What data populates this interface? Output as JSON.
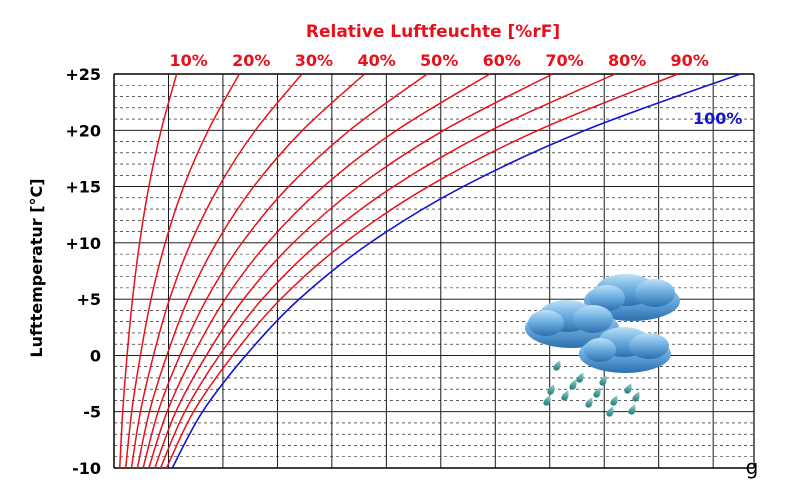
{
  "chart_data": {
    "type": "line",
    "title": "Relative Luftfeuchte [%rF]",
    "ylabel": "Lufttemperatur [°C]",
    "xlabel": "",
    "x_unit_symbol": "g",
    "y_ticks": [
      "+25",
      "+20",
      "+15",
      "+10",
      "+5",
      "0",
      "-5",
      "-10"
    ],
    "ylim": [
      -10,
      25
    ],
    "xlim": [
      0,
      23.5
    ],
    "grid": true,
    "colors": {
      "rh_curves": "#e8111b",
      "saturation_curve": "#1414d2",
      "grid": "#000000"
    },
    "series": [
      {
        "name": "10%",
        "points": [
          [
            0.21,
            -10
          ],
          [
            0.32,
            -5
          ],
          [
            0.48,
            0
          ],
          [
            0.68,
            5
          ],
          [
            0.94,
            10
          ],
          [
            1.28,
            15
          ],
          [
            1.73,
            20
          ],
          [
            2.3,
            25
          ]
        ]
      },
      {
        "name": "20%",
        "points": [
          [
            0.43,
            -10
          ],
          [
            0.65,
            -5
          ],
          [
            0.97,
            0
          ],
          [
            1.36,
            5
          ],
          [
            1.88,
            10
          ],
          [
            2.56,
            15
          ],
          [
            3.46,
            20
          ],
          [
            4.6,
            25
          ]
        ]
      },
      {
        "name": "30%",
        "points": [
          [
            0.64,
            -10
          ],
          [
            0.97,
            -5
          ],
          [
            1.45,
            0
          ],
          [
            2.04,
            5
          ],
          [
            2.82,
            10
          ],
          [
            3.85,
            15
          ],
          [
            5.19,
            20
          ],
          [
            6.9,
            25
          ]
        ]
      },
      {
        "name": "40%",
        "points": [
          [
            0.86,
            -10
          ],
          [
            1.3,
            -5
          ],
          [
            1.94,
            0
          ],
          [
            2.72,
            5
          ],
          [
            3.76,
            10
          ],
          [
            5.13,
            15
          ],
          [
            6.92,
            20
          ],
          [
            9.2,
            25
          ]
        ]
      },
      {
        "name": "50%",
        "points": [
          [
            1.07,
            -10
          ],
          [
            1.62,
            -5
          ],
          [
            2.42,
            0
          ],
          [
            3.4,
            5
          ],
          [
            4.7,
            10
          ],
          [
            6.41,
            15
          ],
          [
            8.65,
            20
          ],
          [
            11.5,
            25
          ]
        ]
      },
      {
        "name": "60%",
        "points": [
          [
            1.28,
            -10
          ],
          [
            1.95,
            -5
          ],
          [
            2.9,
            0
          ],
          [
            4.08,
            5
          ],
          [
            5.64,
            10
          ],
          [
            7.69,
            15
          ],
          [
            10.38,
            20
          ],
          [
            13.8,
            25
          ]
        ]
      },
      {
        "name": "70%",
        "points": [
          [
            1.5,
            -10
          ],
          [
            2.27,
            -5
          ],
          [
            3.39,
            0
          ],
          [
            4.76,
            5
          ],
          [
            6.58,
            10
          ],
          [
            8.97,
            15
          ],
          [
            12.11,
            20
          ],
          [
            16.1,
            25
          ]
        ]
      },
      {
        "name": "80%",
        "points": [
          [
            1.71,
            -10
          ],
          [
            2.6,
            -5
          ],
          [
            3.87,
            0
          ],
          [
            5.44,
            5
          ],
          [
            7.52,
            10
          ],
          [
            10.26,
            15
          ],
          [
            13.84,
            20
          ],
          [
            18.4,
            25
          ]
        ]
      },
      {
        "name": "90%",
        "points": [
          [
            1.93,
            -10
          ],
          [
            2.92,
            -5
          ],
          [
            4.36,
            0
          ],
          [
            6.12,
            5
          ],
          [
            8.46,
            10
          ],
          [
            11.54,
            15
          ],
          [
            15.57,
            20
          ],
          [
            20.7,
            25
          ]
        ]
      },
      {
        "name": "100%",
        "points": [
          [
            2.14,
            -10
          ],
          [
            3.25,
            -5
          ],
          [
            4.84,
            0
          ],
          [
            6.8,
            5
          ],
          [
            9.4,
            10
          ],
          [
            12.82,
            15
          ],
          [
            17.3,
            20
          ],
          [
            23.0,
            25
          ]
        ]
      }
    ]
  },
  "icons": {
    "rain_cloud": "rain-cloud-icon",
    "cloud_color": "#4f95cc",
    "rain_color": "#2a8a8a"
  }
}
